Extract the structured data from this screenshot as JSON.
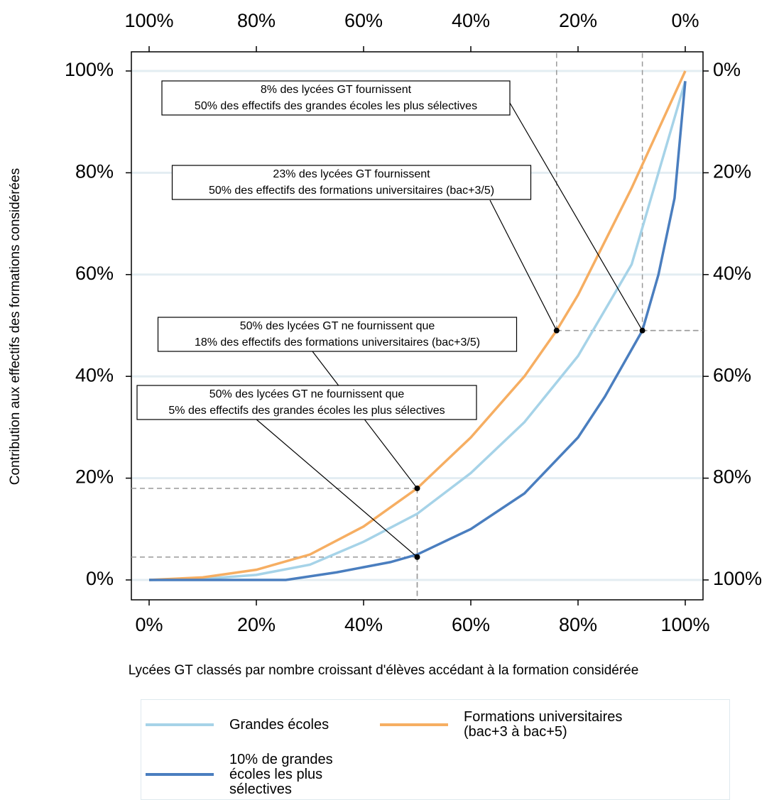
{
  "chart_data": {
    "type": "line",
    "xlabel": "Lycées GT classés par nombre croissant d'élèves accédant à la formation considérée",
    "ylabel": "Contribution aux effectifs des formations considérées",
    "xlim": [
      0,
      100
    ],
    "ylim": [
      0,
      100
    ],
    "x2lim": [
      100,
      0
    ],
    "y2lim": [
      100,
      0
    ],
    "xticks": [
      {
        "value": 0,
        "label": "0%"
      },
      {
        "value": 20,
        "label": "20%"
      },
      {
        "value": 40,
        "label": "40%"
      },
      {
        "value": 60,
        "label": "60%"
      },
      {
        "value": 80,
        "label": "80%"
      },
      {
        "value": 100,
        "label": "100%"
      }
    ],
    "yticks": [
      {
        "value": 0,
        "label": "0%"
      },
      {
        "value": 20,
        "label": "20%"
      },
      {
        "value": 40,
        "label": "40%"
      },
      {
        "value": 60,
        "label": "60%"
      },
      {
        "value": 80,
        "label": "80%"
      },
      {
        "value": 100,
        "label": "100%"
      }
    ],
    "x2ticks": [
      {
        "value": 100,
        "label": "100%"
      },
      {
        "value": 80,
        "label": "80%"
      },
      {
        "value": 60,
        "label": "60%"
      },
      {
        "value": 40,
        "label": "40%"
      },
      {
        "value": 20,
        "label": "20%"
      },
      {
        "value": 0,
        "label": "0%"
      }
    ],
    "y2ticks": [
      {
        "value": 0,
        "label": "0%"
      },
      {
        "value": 20,
        "label": "20%"
      },
      {
        "value": 40,
        "label": "40%"
      },
      {
        "value": 60,
        "label": "60%"
      },
      {
        "value": 80,
        "label": "80%"
      },
      {
        "value": 100,
        "label": "100%"
      }
    ],
    "grid": true,
    "series": [
      {
        "name": "Grandes écoles",
        "color": "#a6d3e8",
        "x": [
          0,
          10,
          20,
          30,
          40,
          50,
          60,
          70,
          80,
          90,
          100
        ],
        "values": [
          0,
          0.2,
          1,
          3,
          7.5,
          13,
          21,
          31,
          44,
          62,
          98
        ]
      },
      {
        "name": "Formations universitaires (bac+3 à bac+5)",
        "color": "#f6ae62",
        "x": [
          0,
          10,
          20,
          30,
          40,
          50,
          60,
          70,
          76,
          80,
          90,
          100
        ],
        "values": [
          0,
          0.5,
          2,
          5,
          10.5,
          18,
          28,
          40,
          49,
          56,
          77,
          100
        ]
      },
      {
        "name": "10% de grandes écoles les plus sélectives",
        "color": "#4a7ebf",
        "x": [
          0,
          25.5,
          35,
          45,
          50,
          60,
          70,
          80,
          85,
          92,
          95,
          98,
          100
        ],
        "values": [
          0,
          0,
          1.5,
          3.5,
          5,
          10,
          17,
          28,
          36,
          49,
          60,
          75,
          98
        ]
      }
    ],
    "annotations": [
      {
        "text": [
          "8% des lycées GT fournissent",
          "50% des effectifs des grandes écoles les plus sélectives"
        ],
        "x": 92,
        "y": 49
      },
      {
        "text": [
          "23% des lycées GT fournissent",
          "50% des effectifs des formations universitaires (bac+3/5)"
        ],
        "x": 76,
        "y": 49
      },
      {
        "text": [
          "50% des lycées GT ne fournissent que",
          "18% des effectifs des formations universitaires (bac+3/5)"
        ],
        "x": 50,
        "y": 18
      },
      {
        "text": [
          "50% des lycées GT ne fournissent que",
          "5% des effectifs des grandes écoles les plus sélectives"
        ],
        "x": 50,
        "y": 4.5
      }
    ]
  }
}
